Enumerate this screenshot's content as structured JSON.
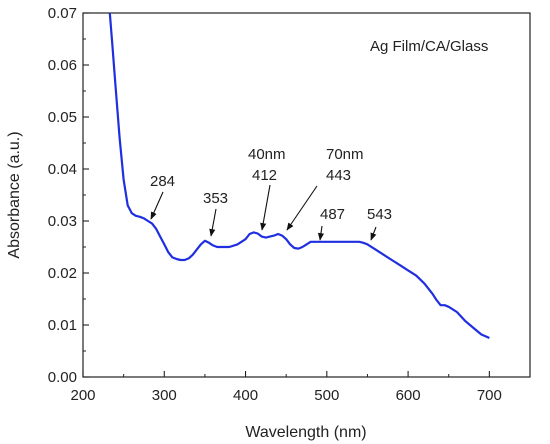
{
  "chart_data": {
    "type": "line",
    "xlabel": "Wavelength (nm)",
    "ylabel": "Absorbance (a.u.)",
    "xlim": [
      200,
      750
    ],
    "ylim": [
      0.0,
      0.07
    ],
    "x_ticks": [
      "200",
      "300",
      "400",
      "500",
      "600",
      "700"
    ],
    "x_tick_values": [
      200,
      300,
      400,
      500,
      600,
      700
    ],
    "y_ticks": [
      "0.00",
      "0.01",
      "0.02",
      "0.03",
      "0.04",
      "0.05",
      "0.06",
      "0.07"
    ],
    "y_tick_values": [
      0.0,
      0.01,
      0.02,
      0.03,
      0.04,
      0.05,
      0.06,
      0.07
    ],
    "grid": false,
    "legend": {
      "text": "Ag Film/CA/Glass",
      "placement": "top-right"
    },
    "series": [
      {
        "color": "#1f2fe0",
        "x": [
          233,
          236,
          240,
          245,
          250,
          255,
          260,
          265,
          270,
          275,
          280,
          285,
          290,
          295,
          300,
          305,
          310,
          315,
          320,
          325,
          330,
          335,
          340,
          345,
          350,
          355,
          360,
          365,
          370,
          380,
          390,
          400,
          405,
          410,
          415,
          420,
          425,
          430,
          435,
          440,
          445,
          450,
          455,
          460,
          465,
          470,
          475,
          480,
          490,
          500,
          510,
          520,
          530,
          540,
          545,
          550,
          560,
          570,
          580,
          590,
          600,
          610,
          620,
          630,
          635,
          640,
          645,
          650,
          660,
          670,
          680,
          690,
          700
        ],
        "y": [
          0.07,
          0.064,
          0.056,
          0.046,
          0.038,
          0.033,
          0.0315,
          0.031,
          0.0308,
          0.0305,
          0.03,
          0.0295,
          0.0285,
          0.027,
          0.0255,
          0.024,
          0.023,
          0.0227,
          0.0225,
          0.0225,
          0.0228,
          0.0235,
          0.0245,
          0.0255,
          0.0262,
          0.0258,
          0.0253,
          0.025,
          0.025,
          0.025,
          0.0255,
          0.0265,
          0.0275,
          0.0278,
          0.0276,
          0.027,
          0.0268,
          0.027,
          0.0272,
          0.0275,
          0.0272,
          0.0265,
          0.0255,
          0.0248,
          0.0247,
          0.025,
          0.0255,
          0.026,
          0.026,
          0.026,
          0.026,
          0.026,
          0.026,
          0.026,
          0.0258,
          0.0255,
          0.0245,
          0.0235,
          0.0225,
          0.0215,
          0.0205,
          0.0195,
          0.018,
          0.016,
          0.0148,
          0.0138,
          0.0138,
          0.0135,
          0.0125,
          0.0108,
          0.0095,
          0.0082,
          0.0075
        ]
      }
    ],
    "annotations": [
      {
        "label": "284",
        "x": 284,
        "y": 0.0298
      },
      {
        "label": "353",
        "x": 353,
        "y": 0.0262
      },
      {
        "label": "40nm",
        "x": null,
        "y": null
      },
      {
        "label": "412",
        "x": 412,
        "y": 0.0278
      },
      {
        "label": "70nm",
        "x": null,
        "y": null
      },
      {
        "label": "443",
        "x": 443,
        "y": 0.0273
      },
      {
        "label": "487",
        "x": 487,
        "y": 0.026
      },
      {
        "label": "543",
        "x": 543,
        "y": 0.026
      }
    ]
  }
}
